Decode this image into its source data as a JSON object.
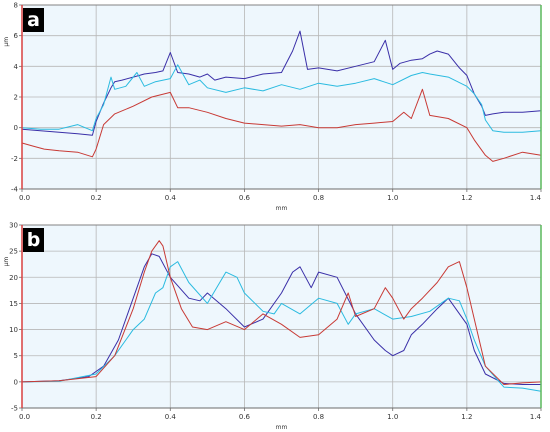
{
  "colors": {
    "plot_bg": "#eef7fd",
    "grid": "#b7b7b7",
    "axis": "#6b6b6b",
    "left_border": "#d94040",
    "right_border": "#5cb85c",
    "label_box": "#000000",
    "series": [
      "#3a2fa8",
      "#2bbbe0",
      "#c83a35"
    ]
  },
  "chart_data": [
    {
      "type": "line",
      "panel_label": "a",
      "xlabel": "mm",
      "ylabel": "µm",
      "xlim": [
        0,
        1.4
      ],
      "ylim": [
        -4,
        8
      ],
      "x_ticks": [
        "0.0",
        "0.2",
        "0.4",
        "0.6",
        "0.8",
        "1.0",
        "1.2",
        "1.4"
      ],
      "y_ticks": [
        "-4",
        "-2",
        "0",
        "2",
        "4",
        "6",
        "8"
      ],
      "grid": true,
      "series": [
        {
          "color": "#3a2fa8",
          "x": [
            0,
            0.05,
            0.1,
            0.15,
            0.19,
            0.2,
            0.22,
            0.24,
            0.25,
            0.27,
            0.3,
            0.33,
            0.36,
            0.38,
            0.4,
            0.42,
            0.45,
            0.48,
            0.5,
            0.52,
            0.55,
            0.6,
            0.65,
            0.7,
            0.73,
            0.75,
            0.77,
            0.8,
            0.85,
            0.9,
            0.95,
            0.98,
            1.0,
            1.02,
            1.05,
            1.08,
            1.1,
            1.12,
            1.15,
            1.18,
            1.2,
            1.22,
            1.24,
            1.25,
            1.27,
            1.3,
            1.35,
            1.4
          ],
          "y": [
            -0.1,
            -0.2,
            -0.3,
            -0.4,
            -0.5,
            0.4,
            1.6,
            2.6,
            3.0,
            3.1,
            3.3,
            3.5,
            3.6,
            3.7,
            4.9,
            3.6,
            3.5,
            3.3,
            3.5,
            3.1,
            3.3,
            3.2,
            3.5,
            3.6,
            5.0,
            6.3,
            3.8,
            3.9,
            3.7,
            4.0,
            4.3,
            5.7,
            3.8,
            4.2,
            4.4,
            4.5,
            4.8,
            5.0,
            4.8,
            3.9,
            3.4,
            2.2,
            1.4,
            0.8,
            0.9,
            1.0,
            1.0,
            1.1
          ]
        },
        {
          "color": "#2bbbe0",
          "x": [
            0,
            0.05,
            0.1,
            0.15,
            0.19,
            0.2,
            0.22,
            0.24,
            0.25,
            0.28,
            0.31,
            0.33,
            0.36,
            0.4,
            0.42,
            0.45,
            0.48,
            0.5,
            0.55,
            0.6,
            0.65,
            0.7,
            0.75,
            0.8,
            0.85,
            0.9,
            0.95,
            1.0,
            1.05,
            1.08,
            1.1,
            1.15,
            1.2,
            1.22,
            1.24,
            1.25,
            1.27,
            1.3,
            1.35,
            1.4
          ],
          "y": [
            0.0,
            -0.1,
            -0.1,
            0.2,
            -0.2,
            0.6,
            1.5,
            3.3,
            2.5,
            2.7,
            3.6,
            2.7,
            3.0,
            3.2,
            4.1,
            2.8,
            3.1,
            2.6,
            2.3,
            2.6,
            2.4,
            2.8,
            2.5,
            2.9,
            2.7,
            2.9,
            3.2,
            2.8,
            3.4,
            3.6,
            3.5,
            3.3,
            2.7,
            2.2,
            1.5,
            0.5,
            -0.2,
            -0.3,
            -0.3,
            -0.2
          ]
        },
        {
          "color": "#c83a35",
          "x": [
            0,
            0.03,
            0.06,
            0.1,
            0.15,
            0.19,
            0.2,
            0.22,
            0.25,
            0.3,
            0.35,
            0.4,
            0.42,
            0.45,
            0.5,
            0.55,
            0.6,
            0.65,
            0.7,
            0.75,
            0.8,
            0.85,
            0.9,
            0.95,
            1.0,
            1.03,
            1.05,
            1.08,
            1.1,
            1.15,
            1.2,
            1.22,
            1.25,
            1.27,
            1.3,
            1.35,
            1.4
          ],
          "y": [
            -1.0,
            -1.2,
            -1.4,
            -1.5,
            -1.6,
            -1.9,
            -1.4,
            0.2,
            0.9,
            1.4,
            2.0,
            2.3,
            1.3,
            1.3,
            1.0,
            0.6,
            0.3,
            0.2,
            0.1,
            0.2,
            0.0,
            0.0,
            0.2,
            0.3,
            0.4,
            1.0,
            0.6,
            2.5,
            0.8,
            0.6,
            0.0,
            -0.8,
            -1.8,
            -2.2,
            -2.0,
            -1.6,
            -1.8
          ]
        }
      ]
    },
    {
      "type": "line",
      "panel_label": "b",
      "xlabel": "mm",
      "ylabel": "µm",
      "xlim": [
        0,
        1.4
      ],
      "ylim": [
        -5,
        30
      ],
      "x_ticks": [
        "0.0",
        "0.2",
        "0.4",
        "0.6",
        "0.8",
        "1.0",
        "1.2",
        "1.4"
      ],
      "y_ticks": [
        "-5",
        "0",
        "5",
        "10",
        "15",
        "20",
        "25",
        "30"
      ],
      "grid": true,
      "series": [
        {
          "color": "#3a2fa8",
          "x": [
            0,
            0.1,
            0.18,
            0.22,
            0.26,
            0.3,
            0.33,
            0.35,
            0.37,
            0.4,
            0.45,
            0.48,
            0.5,
            0.55,
            0.6,
            0.65,
            0.7,
            0.73,
            0.75,
            0.78,
            0.8,
            0.85,
            0.9,
            0.95,
            0.98,
            1.0,
            1.03,
            1.05,
            1.08,
            1.12,
            1.15,
            1.2,
            1.22,
            1.25,
            1.3,
            1.35,
            1.4
          ],
          "y": [
            0,
            0.2,
            1.0,
            3.0,
            8.0,
            16.0,
            22.0,
            24.5,
            24.0,
            20.0,
            16.0,
            15.5,
            17.0,
            14.0,
            10.5,
            12.0,
            17.0,
            21.0,
            22.0,
            18.0,
            21.0,
            20.0,
            13.0,
            8.0,
            6.0,
            5.0,
            6.0,
            9.0,
            11.0,
            14.0,
            16.0,
            11.0,
            6.0,
            1.5,
            -0.3,
            -0.5,
            -0.5
          ]
        },
        {
          "color": "#2bbbe0",
          "x": [
            0,
            0.1,
            0.2,
            0.25,
            0.3,
            0.33,
            0.36,
            0.38,
            0.4,
            0.42,
            0.45,
            0.5,
            0.55,
            0.58,
            0.6,
            0.65,
            0.68,
            0.7,
            0.75,
            0.8,
            0.85,
            0.88,
            0.9,
            0.95,
            1.0,
            1.05,
            1.1,
            1.15,
            1.18,
            1.2,
            1.22,
            1.25,
            1.3,
            1.35,
            1.4
          ],
          "y": [
            0,
            0.1,
            1.5,
            5.0,
            10.0,
            12.0,
            17.0,
            18.0,
            22.0,
            23.0,
            19.0,
            15.0,
            21.0,
            20.0,
            17.0,
            13.5,
            13.0,
            15.0,
            13.0,
            16.0,
            15.0,
            11.0,
            13.0,
            14.0,
            12.0,
            12.5,
            13.5,
            16.0,
            15.5,
            12.0,
            8.0,
            3.0,
            -1.0,
            -1.2,
            -1.8
          ]
        },
        {
          "color": "#c83a35",
          "x": [
            0,
            0.1,
            0.2,
            0.25,
            0.3,
            0.33,
            0.35,
            0.37,
            0.38,
            0.4,
            0.43,
            0.46,
            0.5,
            0.55,
            0.6,
            0.65,
            0.7,
            0.75,
            0.8,
            0.85,
            0.88,
            0.9,
            0.95,
            0.98,
            1.0,
            1.03,
            1.05,
            1.08,
            1.12,
            1.15,
            1.18,
            1.2,
            1.22,
            1.25,
            1.3,
            1.35,
            1.4
          ],
          "y": [
            0,
            0.2,
            1.0,
            5.0,
            14.0,
            21.0,
            25.0,
            27.0,
            26.0,
            20.0,
            14.0,
            10.5,
            10.0,
            11.5,
            10.0,
            13.0,
            11.0,
            8.5,
            9.0,
            12.0,
            17.0,
            12.5,
            14.0,
            18.0,
            16.0,
            12.0,
            14.0,
            16.0,
            19.0,
            22.0,
            23.0,
            18.0,
            12.0,
            3.0,
            -0.5,
            -0.2,
            0.0
          ]
        }
      ]
    }
  ]
}
